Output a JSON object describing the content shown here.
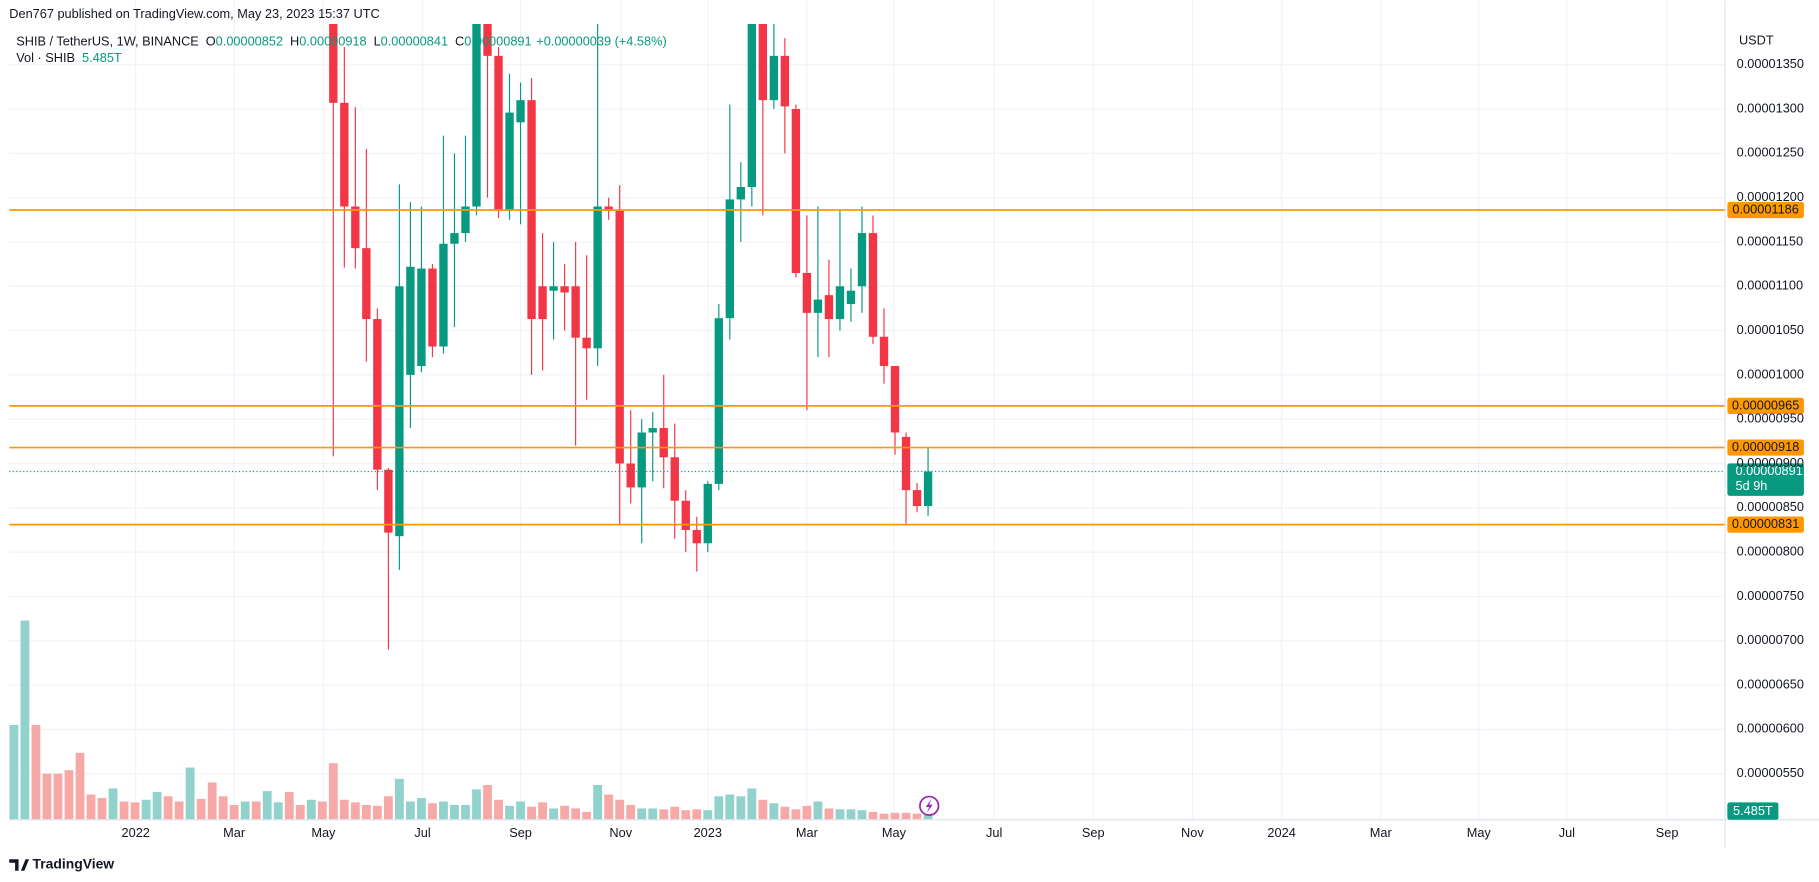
{
  "header": {
    "published": "Den767 published on TradingView.com, May 23, 2023 15:37 UTC"
  },
  "chart_data": {
    "type": "candlestick",
    "symbol": "SHIB / TetherUS, 1W, BINANCE",
    "ohlc": [
      {
        "key": "O",
        "value": "0.00000852"
      },
      {
        "key": "H",
        "value": "0.00000918"
      },
      {
        "key": "L",
        "value": "0.00000841"
      },
      {
        "key": "C",
        "value": "0.00000891"
      }
    ],
    "change": "+0.00000039 (+4.58%)",
    "currency": "USDT",
    "up_color": "#089981",
    "down_color": "#f23645",
    "candles": {
      "open": [
        null,
        null,
        null,
        null,
        null,
        null,
        null,
        null,
        null,
        null,
        null,
        null,
        null,
        null,
        null,
        null,
        null,
        null,
        null,
        null,
        null,
        null,
        null,
        null,
        null,
        null,
        null,
        null,
        null,
        1.45e-05,
        1.307e-05,
        1.19e-05,
        1.143e-05,
        1.063e-05,
        8.93e-06,
        8.18e-06,
        1e-05,
        1.01e-05,
        1.12e-05,
        1.032e-05,
        1.148e-05,
        1.16e-05,
        1.19e-05,
        1.43e-05,
        1.36e-05,
        1.185e-05,
        1.285e-05,
        1.31e-05,
        1.1e-05,
        1.095e-05,
        1.1e-05,
        1.1e-05,
        1.042e-05,
        1.03e-05,
        1.19e-05,
        1.185e-05,
        9e-06,
        8.73e-06,
        9.35e-06,
        9.4e-06,
        9.07e-06,
        8.58e-06,
        8.25e-06,
        8.1e-06,
        8.77e-06,
        1.064e-05,
        1.198e-05,
        1.212e-05,
        1.45e-05,
        1.31e-05,
        1.36e-05,
        1.3e-05,
        1.115e-05,
        1.07e-05,
        1.09e-05,
        1.063e-05,
        1.08e-05,
        1.1e-05,
        1.16e-05,
        1.043e-05,
        1.01e-05,
        9.3e-06,
        8.7e-06,
        8.52e-06
      ],
      "high": [
        null,
        null,
        null,
        null,
        null,
        null,
        null,
        null,
        null,
        null,
        null,
        null,
        null,
        null,
        null,
        null,
        null,
        null,
        null,
        null,
        null,
        null,
        null,
        null,
        null,
        null,
        null,
        null,
        null,
        1.5e-05,
        1.37e-05,
        1.302e-05,
        1.255e-05,
        1.075e-05,
        8.95e-06,
        1.215e-05,
        1.195e-05,
        1.19e-05,
        1.125e-05,
        1.27e-05,
        1.25e-05,
        1.27e-05,
        1.5e-05,
        1.5e-05,
        1.37e-05,
        1.34e-05,
        1.33e-05,
        1.335e-05,
        1.16e-05,
        1.15e-05,
        1.125e-05,
        1.15e-05,
        1.135e-05,
        1.41e-05,
        1.2e-05,
        1.214e-05,
        9.6e-06,
        9.5e-06,
        9.58e-06,
        1e-05,
        9.45e-06,
        8.7e-06,
        8.4e-06,
        8.8e-06,
        1.08e-05,
        1.305e-05,
        1.24e-05,
        1.5e-05,
        1.5e-05,
        1.48e-05,
        1.38e-05,
        1.305e-05,
        1.18e-05,
        1.19e-05,
        1.13e-05,
        1.185e-05,
        1.12e-05,
        1.19e-05,
        1.18e-05,
        1.075e-05,
        1.01e-05,
        9.35e-06,
        8.78e-06,
        9.18e-06
      ],
      "low": [
        null,
        null,
        null,
        null,
        null,
        null,
        null,
        null,
        null,
        null,
        null,
        null,
        null,
        null,
        null,
        null,
        null,
        null,
        null,
        null,
        null,
        null,
        null,
        null,
        null,
        null,
        null,
        null,
        null,
        9.08e-06,
        1.121e-05,
        1.12e-05,
        1.015e-05,
        8.7e-06,
        6.9e-06,
        7.8e-06,
        9.4e-06,
        1.003e-05,
        1.02e-05,
        1.024e-05,
        1.054e-05,
        1.15e-05,
        1.18e-05,
        1.2e-05,
        1.177e-05,
        1.175e-05,
        1.17e-05,
        1e-05,
        1.005e-05,
        1.04e-05,
        1.05e-05,
        9.2e-06,
        9.72e-06,
        1.01e-05,
        1.175e-05,
        8.3e-06,
        8.55e-06,
        8.1e-06,
        8.8e-06,
        8.72e-06,
        8.15e-06,
        8e-06,
        7.78e-06,
        8e-06,
        8.7e-06,
        1.04e-05,
        1.15e-05,
        1.19e-05,
        1.18e-05,
        1.3e-05,
        1.25e-05,
        1.11e-05,
        9.6e-06,
        1.02e-05,
        1.02e-05,
        1.05e-05,
        1.06e-05,
        1.07e-05,
        1.035e-05,
        9.9e-06,
        9.1e-06,
        8.32e-06,
        8.45e-06,
        8.41e-06
      ],
      "close": [
        null,
        null,
        null,
        null,
        null,
        null,
        null,
        null,
        null,
        null,
        null,
        null,
        null,
        null,
        null,
        null,
        null,
        null,
        null,
        null,
        null,
        null,
        null,
        null,
        null,
        null,
        null,
        null,
        null,
        1.307e-05,
        1.19e-05,
        1.143e-05,
        1.063e-05,
        8.93e-06,
        8.22e-06,
        1.1e-05,
        1.122e-05,
        1.12e-05,
        1.032e-05,
        1.148e-05,
        1.16e-05,
        1.19e-05,
        1.43e-05,
        1.36e-05,
        1.185e-05,
        1.296e-05,
        1.31e-05,
        1.063e-05,
        1.063e-05,
        1.1e-05,
        1.093e-05,
        1.042e-05,
        1.03e-05,
        1.19e-05,
        1.185e-05,
        9e-06,
        8.73e-06,
        9.35e-06,
        9.4e-06,
        9.07e-06,
        8.58e-06,
        8.25e-06,
        8.1e-06,
        8.77e-06,
        1.064e-05,
        1.198e-05,
        1.212e-05,
        1.45e-05,
        1.31e-05,
        1.36e-05,
        1.303e-05,
        1.115e-05,
        1.07e-05,
        1.085e-05,
        1.063e-05,
        1.1e-05,
        1.095e-05,
        1.16e-05,
        1.043e-05,
        1.01e-05,
        9.35e-06,
        8.7e-06,
        8.52e-06,
        8.91e-06
      ]
    },
    "volume": {
      "name": "Vol · SHIB",
      "vlim": [
        0,
        240
      ],
      "values": [
        109,
        229,
        109,
        53,
        53,
        57,
        77,
        29,
        25,
        36,
        21,
        20,
        23,
        32,
        27,
        21,
        60,
        24,
        43,
        27,
        17,
        21,
        21,
        33,
        20,
        32,
        17,
        23,
        21,
        65,
        23,
        20,
        17,
        16,
        27,
        47,
        21,
        25,
        19,
        21,
        17,
        17,
        35,
        40,
        23,
        16,
        21,
        15,
        20,
        13,
        16,
        13,
        9,
        40,
        29,
        23,
        17,
        13,
        13,
        12,
        15,
        11,
        12,
        11,
        27,
        29,
        27,
        36,
        23,
        19,
        15,
        12,
        16,
        21,
        13,
        12,
        12,
        11,
        9,
        7,
        8,
        8,
        7,
        5.485
      ],
      "value_labels": [
        null,
        null,
        null,
        null,
        null,
        null,
        null,
        null,
        null,
        null,
        null,
        null,
        null,
        null,
        null,
        null,
        null,
        null,
        null,
        null,
        null,
        null,
        null,
        null,
        null,
        null,
        null,
        null,
        null,
        null,
        null,
        null,
        null,
        null,
        null,
        null,
        null,
        null,
        null,
        null,
        null,
        null,
        null,
        null,
        null,
        null,
        null,
        null,
        null,
        null,
        null,
        null,
        null,
        null,
        null,
        null,
        null,
        null,
        null,
        null,
        null,
        null,
        null,
        null,
        null,
        null,
        null,
        null,
        null,
        null,
        null,
        null,
        null,
        null,
        null,
        null,
        null,
        null,
        null,
        null,
        null,
        null,
        null,
        "5.485T"
      ],
      "colors": [
        "#92d2cc",
        "#92d2cc",
        "#f7a9a7",
        "#f7a9a7",
        "#f7a9a7",
        "#f7a9a7",
        "#f7a9a7",
        "#f7a9a7",
        "#f7a9a7",
        "#92d2cc",
        "#f7a9a7",
        "#f7a9a7",
        "#92d2cc",
        "#92d2cc",
        "#f7a9a7",
        "#f7a9a7",
        "#92d2cc",
        "#f7a9a7",
        "#f7a9a7",
        "#f7a9a7",
        "#f7a9a7",
        "#92d2cc",
        "#f7a9a7",
        "#92d2cc",
        "#92d2cc",
        "#f7a9a7",
        "#f7a9a7",
        "#92d2cc",
        "#f7a9a7",
        "#f7a9a7",
        "#f7a9a7",
        "#f7a9a7",
        "#f7a9a7",
        "#f7a9a7",
        "#f7a9a7",
        "#92d2cc",
        "#92d2cc",
        "#92d2cc",
        "#f7a9a7",
        "#92d2cc",
        "#92d2cc",
        "#92d2cc",
        "#92d2cc",
        "#f7a9a7",
        "#f7a9a7",
        "#92d2cc",
        "#92d2cc",
        "#f7a9a7",
        "#f7a9a7",
        "#92d2cc",
        "#f7a9a7",
        "#f7a9a7",
        "#f7a9a7",
        "#92d2cc",
        "#f7a9a7",
        "#f7a9a7",
        "#f7a9a7",
        "#92d2cc",
        "#92d2cc",
        "#f7a9a7",
        "#f7a9a7",
        "#f7a9a7",
        "#f7a9a7",
        "#92d2cc",
        "#92d2cc",
        "#92d2cc",
        "#92d2cc",
        "#92d2cc",
        "#f7a9a7",
        "#92d2cc",
        "#f7a9a7",
        "#f7a9a7",
        "#f7a9a7",
        "#92d2cc",
        "#f7a9a7",
        "#92d2cc",
        "#92d2cc",
        "#92d2cc",
        "#f7a9a7",
        "#f7a9a7",
        "#f7a9a7",
        "#f7a9a7",
        "#f7a9a7",
        "#92d2cc"
      ]
    },
    "xlim": [
      -0.42,
      155.36
    ],
    "xticks": [
      {
        "value": 11.06,
        "label": "2022"
      },
      {
        "value": 20.0,
        "label": "Mar"
      },
      {
        "value": 28.1,
        "label": "May"
      },
      {
        "value": 37.1,
        "label": "Jul"
      },
      {
        "value": 46.0,
        "label": "Sep"
      },
      {
        "value": 55.1,
        "label": "Nov"
      },
      {
        "value": 63.0,
        "label": "2023"
      },
      {
        "value": 72.0,
        "label": "Mar"
      },
      {
        "value": 79.9,
        "label": "May"
      },
      {
        "value": 89.0,
        "label": "Jul"
      },
      {
        "value": 98.0,
        "label": "Sep"
      },
      {
        "value": 107.0,
        "label": "Nov"
      },
      {
        "value": 115.1,
        "label": "2024"
      },
      {
        "value": 124.1,
        "label": "Mar"
      },
      {
        "value": 133.0,
        "label": "May"
      },
      {
        "value": 141.0,
        "label": "Jul"
      },
      {
        "value": 150.1,
        "label": "Sep"
      }
    ],
    "ylim": [
      4.98e-06,
      1.396e-05
    ],
    "yticks": [
      {
        "value": 5.5e-06,
        "label": "0.00000550"
      },
      {
        "value": 6e-06,
        "label": "0.00000600"
      },
      {
        "value": 6.5e-06,
        "label": "0.00000650"
      },
      {
        "value": 7e-06,
        "label": "0.00000700"
      },
      {
        "value": 7.5e-06,
        "label": "0.00000750"
      },
      {
        "value": 8e-06,
        "label": "0.00000800"
      },
      {
        "value": 8.5e-06,
        "label": "0.00000850"
      },
      {
        "value": 9e-06,
        "label": "0.00000900"
      },
      {
        "value": 9.5e-06,
        "label": "0.00000950"
      },
      {
        "value": 1e-05,
        "label": "0.00001000"
      },
      {
        "value": 1.05e-05,
        "label": "0.00001050"
      },
      {
        "value": 1.1e-05,
        "label": "0.00001100"
      },
      {
        "value": 1.15e-05,
        "label": "0.00001150"
      },
      {
        "value": 1.2e-05,
        "label": "0.00001200"
      },
      {
        "value": 1.25e-05,
        "label": "0.00001250"
      },
      {
        "value": 1.3e-05,
        "label": "0.00001300"
      },
      {
        "value": 1.35e-05,
        "label": "0.00001350"
      }
    ],
    "grid": true,
    "levels": {
      "color": "#ff9800",
      "values": [
        1.186e-05,
        9.65e-06,
        9.18e-06,
        8.31e-06
      ]
    },
    "last": {
      "value": 8.91e-06,
      "countdown": "5d 9h"
    }
  },
  "footer": {
    "brand": "TradingView"
  }
}
